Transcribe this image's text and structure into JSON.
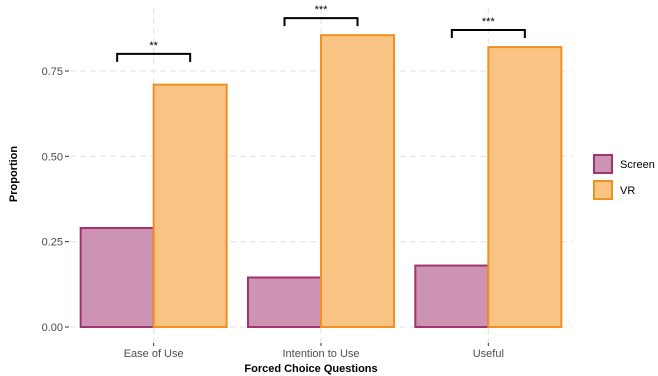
{
  "chart_data": {
    "type": "bar",
    "title": "",
    "xlabel": "Forced Choice Questions",
    "ylabel": "Proportion",
    "categories": [
      "Ease of Use",
      "Intention to Use",
      "Useful"
    ],
    "series": [
      {
        "name": "Screen",
        "values": [
          0.29,
          0.145,
          0.18
        ],
        "fill": "#cd93b4",
        "stroke": "#a3336e"
      },
      {
        "name": "VR",
        "values": [
          0.71,
          0.855,
          0.82
        ],
        "fill": "#f9c384",
        "stroke": "#f0901e"
      }
    ],
    "ylim": [
      0,
      0.93
    ],
    "yticks": [
      {
        "value": 0,
        "label": "0.00"
      },
      {
        "value": 0.25,
        "label": "0.25"
      },
      {
        "value": 0.5,
        "label": "0.50"
      },
      {
        "value": 0.75,
        "label": "0.75"
      }
    ],
    "grid": true,
    "gridline_color": "#e3e3e3",
    "legend_position": "right",
    "significance": [
      {
        "category_index": 0,
        "label": "**",
        "y": 0.8
      },
      {
        "category_index": 1,
        "label": "***",
        "y": 0.905
      },
      {
        "category_index": 2,
        "label": "***",
        "y": 0.87
      }
    ]
  }
}
